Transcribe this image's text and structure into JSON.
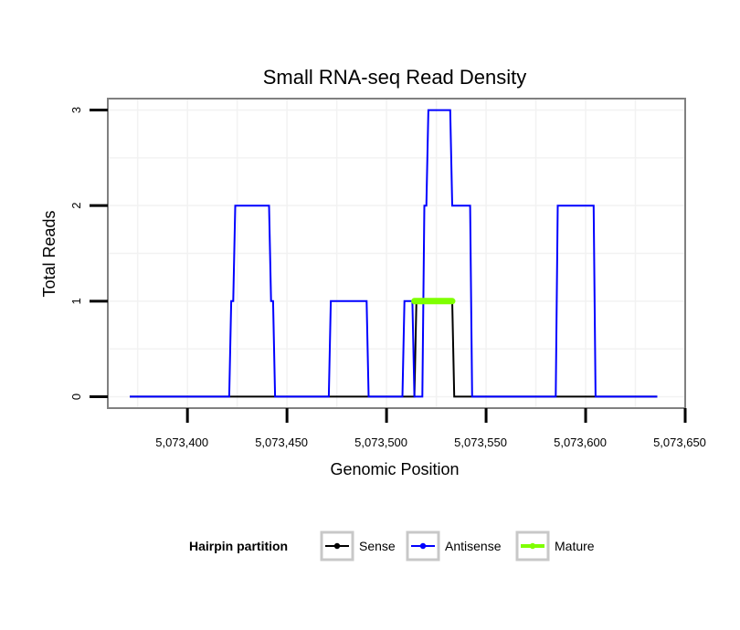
{
  "chart_data": {
    "type": "line",
    "title": "Small RNA-seq Read Density",
    "xlabel": "Genomic Position",
    "ylabel": "Total Reads",
    "xlim": [
      5073360,
      5073650
    ],
    "ylim": [
      -0.12,
      3.12
    ],
    "xticks": [
      {
        "value": 5073400,
        "label": "5,073,400"
      },
      {
        "value": 5073450,
        "label": "5,073,450"
      },
      {
        "value": 5073500,
        "label": "5,073,500"
      },
      {
        "value": 5073550,
        "label": "5,073,550"
      },
      {
        "value": 5073600,
        "label": "5,073,600"
      },
      {
        "value": 5073650,
        "label": "5,073,650"
      }
    ],
    "yticks": [
      {
        "value": 0,
        "label": "0"
      },
      {
        "value": 1,
        "label": "1"
      },
      {
        "value": 2,
        "label": "2"
      },
      {
        "value": 3,
        "label": "3"
      }
    ],
    "grid": true,
    "legend": {
      "title": "Hairpin partition",
      "position": "bottom"
    },
    "series": [
      {
        "name": "Sense",
        "color": "#000000",
        "x": [
          5073371,
          5073514,
          5073515,
          5073533,
          5073534,
          5073636
        ],
        "y": [
          0,
          0,
          1,
          1,
          0,
          0
        ]
      },
      {
        "name": "Antisense",
        "color": "#0000ff",
        "x": [
          5073371,
          5073421,
          5073422,
          5073423,
          5073424,
          5073441,
          5073442,
          5073443,
          5073444,
          5073471,
          5073472,
          5073490,
          5073491,
          5073508,
          5073509,
          5073513,
          5073514,
          5073518,
          5073519,
          5073520,
          5073521,
          5073532,
          5073533,
          5073542,
          5073543,
          5073585,
          5073586,
          5073604,
          5073605,
          5073636
        ],
        "y": [
          0,
          0,
          1,
          1,
          2,
          2,
          1,
          1,
          0,
          0,
          1,
          1,
          0,
          0,
          1,
          1,
          0,
          0,
          2,
          2,
          3,
          3,
          2,
          2,
          0,
          0,
          2,
          2,
          0,
          0
        ]
      },
      {
        "name": "Mature",
        "color": "#7fff00",
        "x": [
          5073514,
          5073533
        ],
        "y": [
          1,
          1
        ]
      }
    ]
  }
}
